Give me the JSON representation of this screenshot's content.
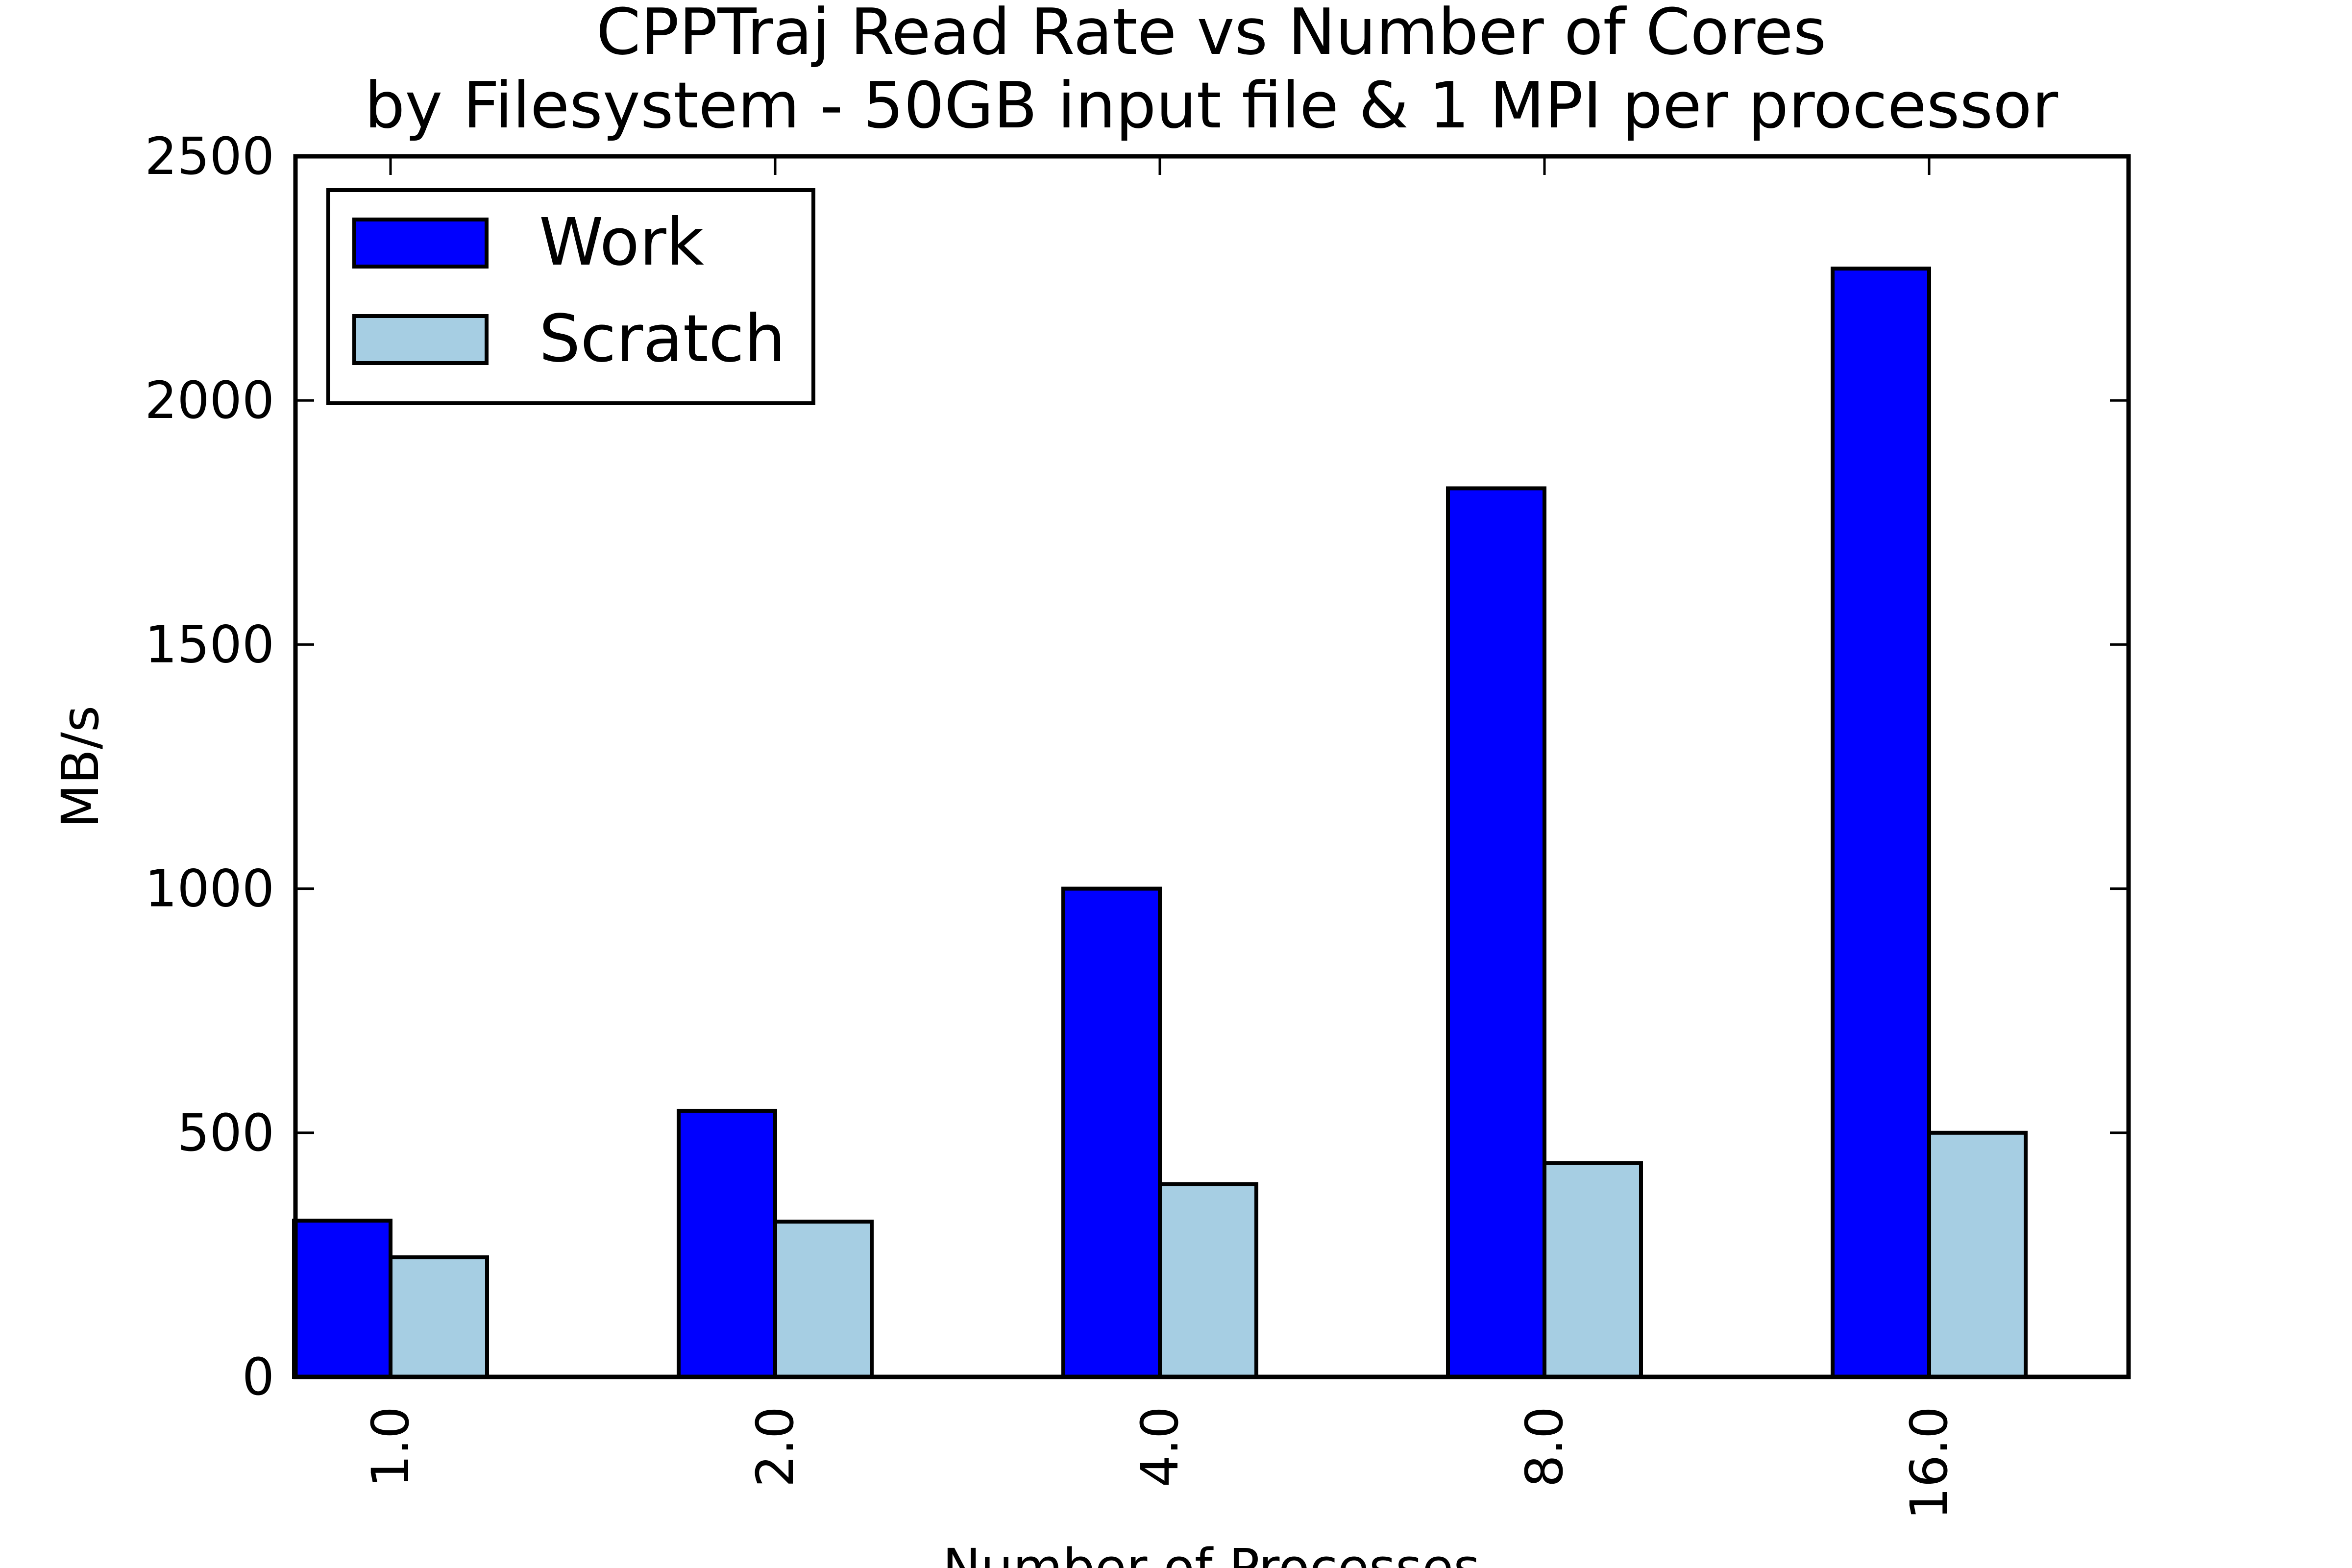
{
  "chart_data": {
    "type": "bar",
    "title": "CPPTraj Read Rate vs Number of Cores",
    "subtitle": "by Filesystem - 50GB input file & 1 MPI per processor",
    "xlabel": "Number of Processes",
    "ylabel": "MB/s",
    "categories": [
      "1.0",
      "2.0",
      "4.0",
      "8.0",
      "16.0"
    ],
    "ylim": [
      0,
      2500
    ],
    "yticks": [
      "0",
      "500",
      "1000",
      "1500",
      "2000",
      "2500"
    ],
    "grid": false,
    "legend_position": "top-left",
    "series": [
      {
        "name": "Work",
        "color": "#0000ff",
        "values": [
          320,
          545,
          1000,
          1820,
          2270
        ]
      },
      {
        "name": "Scratch",
        "color": "#a6cee3",
        "values": [
          245,
          318,
          395,
          438,
          500
        ]
      }
    ]
  }
}
